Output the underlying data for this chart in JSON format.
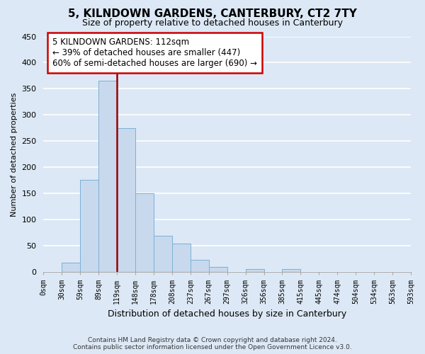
{
  "title": "5, KILNDOWN GARDENS, CANTERBURY, CT2 7TY",
  "subtitle": "Size of property relative to detached houses in Canterbury",
  "xlabel": "Distribution of detached houses by size in Canterbury",
  "ylabel": "Number of detached properties",
  "bin_labels": [
    "0sqm",
    "30sqm",
    "59sqm",
    "89sqm",
    "119sqm",
    "148sqm",
    "178sqm",
    "208sqm",
    "237sqm",
    "267sqm",
    "297sqm",
    "326sqm",
    "356sqm",
    "385sqm",
    "415sqm",
    "445sqm",
    "474sqm",
    "504sqm",
    "534sqm",
    "563sqm",
    "593sqm"
  ],
  "bar_values": [
    0,
    18,
    176,
    365,
    275,
    151,
    70,
    55,
    24,
    10,
    0,
    6,
    0,
    6,
    0,
    0,
    1,
    0,
    0,
    1
  ],
  "bar_color": "#c8d9ee",
  "bar_edge_color": "#7bafd4",
  "property_line_x": 4,
  "property_line_color": "#990000",
  "ylim": [
    0,
    450
  ],
  "yticks": [
    0,
    50,
    100,
    150,
    200,
    250,
    300,
    350,
    400,
    450
  ],
  "annotation_title": "5 KILNDOWN GARDENS: 112sqm",
  "annotation_line1": "← 39% of detached houses are smaller (447)",
  "annotation_line2": "60% of semi-detached houses are larger (690) →",
  "annotation_box_facecolor": "#ffffff",
  "annotation_box_edgecolor": "#cc0000",
  "footer1": "Contains HM Land Registry data © Crown copyright and database right 2024.",
  "footer2": "Contains public sector information licensed under the Open Government Licence v3.0.",
  "fig_facecolor": "#dce8f5",
  "axes_facecolor": "#dce8f5",
  "grid_color": "#ffffff",
  "spine_color": "#aaaaaa"
}
